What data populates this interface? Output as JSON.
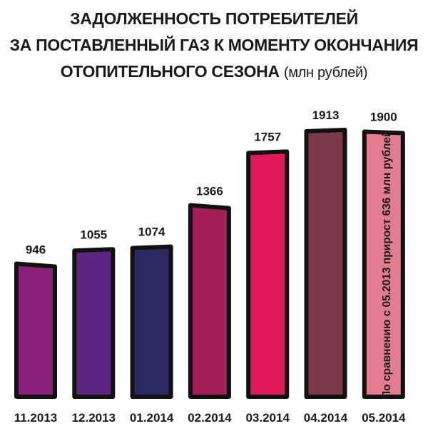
{
  "chart_data": {
    "type": "bar",
    "title_lines": [
      "ЗАДОЛЖЕННОСТЬ ПОТРЕБИТЕЛЕЙ",
      "ЗА ПОСТАВЛЕННЫЙ ГАЗ К МОМЕНТУ ОКОНЧАНИЯ",
      "ОТОПИТЕЛЬНОГО СЕЗОНА"
    ],
    "title_unit": "(млн рублей)",
    "categories": [
      "11.2013",
      "12.2013",
      "01.2014",
      "02.2014",
      "03.2014",
      "04.2014",
      "05.2014"
    ],
    "values": [
      946,
      1055,
      1074,
      1366,
      1757,
      1913,
      1900
    ],
    "colors": [
      "#8a2178",
      "#5e2481",
      "#2c2a63",
      "#a21f5a",
      "#e0195a",
      "#7d3a4c",
      "#e37c8e"
    ],
    "annotation": "По сравнению с 05.2013 прирост 636 млн рублей",
    "xlabel": "",
    "ylabel": "",
    "ylim": [
      0,
      2000
    ],
    "grid": false,
    "legend": false
  }
}
